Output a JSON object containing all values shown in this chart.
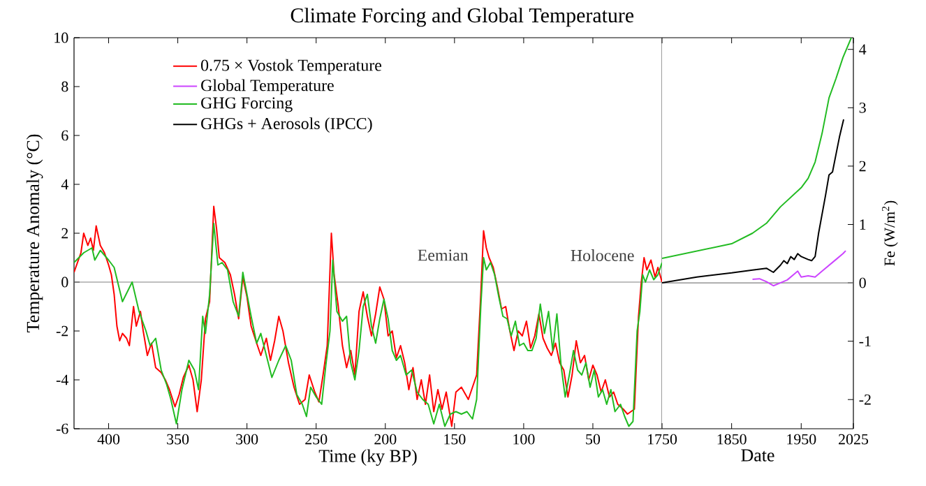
{
  "chart_data": [
    {
      "type": "line",
      "title": "Climate Forcing and Global Temperature",
      "xlabel": "Time (ky BP)",
      "ylabel": "Temperature Anomaly (°C)",
      "xlim": [
        425,
        0
      ],
      "xticks": [
        400,
        350,
        300,
        250,
        200,
        150,
        100,
        50
      ],
      "ylim": [
        -6,
        10
      ],
      "yticks": [
        -6,
        -4,
        -2,
        0,
        2,
        4,
        6,
        8,
        10
      ],
      "grid": false,
      "legend": "top left",
      "marker": "none",
      "line_style": "solid",
      "annotations": [
        {
          "text": "Eemian",
          "x": 130,
          "y": 1.1
        },
        {
          "text": "Holocene",
          "x": 10,
          "y": 1.1
        }
      ],
      "ref_lines": [
        {
          "axis": "y",
          "value": 0,
          "color": "#808080"
        }
      ],
      "series": [
        {
          "name": "0.75 × Vostok Temperature",
          "color": "#ff0000",
          "x": [
            425,
            420,
            418,
            415,
            413,
            411,
            409,
            406,
            403,
            400,
            398,
            396,
            394,
            392,
            390,
            387,
            385,
            382,
            380,
            377,
            375,
            372,
            369,
            366,
            362,
            359,
            356,
            352,
            349,
            346,
            342,
            339,
            336,
            333,
            330,
            327,
            324,
            322,
            320,
            316,
            312,
            309,
            306,
            303,
            300,
            297,
            293,
            290,
            286,
            283,
            280,
            277,
            274,
            270,
            266,
            262,
            258,
            255,
            251,
            248,
            245,
            242,
            239,
            237,
            234,
            231,
            228,
            225,
            222,
            219,
            216,
            213,
            210,
            207,
            204,
            201,
            198,
            195,
            192,
            189,
            186,
            183,
            180,
            177,
            174,
            171,
            168,
            165,
            162,
            159,
            156,
            152,
            149,
            145,
            140,
            137,
            134,
            131,
            129,
            127,
            125,
            122,
            119,
            116,
            113,
            110,
            107,
            104,
            101,
            98,
            95,
            92,
            89,
            86,
            83,
            80,
            77,
            74,
            71,
            68,
            65,
            62,
            59,
            56,
            53,
            50,
            47,
            44,
            41,
            38,
            35,
            32,
            28,
            25,
            20,
            17,
            15,
            13,
            11,
            8,
            5,
            3,
            0
          ],
          "values": [
            0.4,
            1.2,
            2.0,
            1.5,
            1.8,
            1.3,
            2.3,
            1.5,
            1.2,
            0.7,
            0.3,
            -0.5,
            -1.8,
            -2.4,
            -2.1,
            -2.3,
            -2.6,
            -1.0,
            -1.8,
            -1.2,
            -2.0,
            -3.0,
            -2.5,
            -3.5,
            -3.7,
            -4.0,
            -4.4,
            -5.1,
            -4.6,
            -3.9,
            -3.4,
            -4.0,
            -5.3,
            -4.0,
            -1.5,
            -0.8,
            3.1,
            2.2,
            1.0,
            0.8,
            0.3,
            -0.5,
            -1.5,
            0.2,
            -0.6,
            -1.8,
            -2.5,
            -3.0,
            -2.3,
            -3.2,
            -2.4,
            -1.4,
            -2.0,
            -3.3,
            -4.3,
            -5.0,
            -4.8,
            -3.8,
            -4.5,
            -4.9,
            -3.8,
            -2.6,
            2.0,
            0.3,
            -1.0,
            -2.6,
            -3.5,
            -2.8,
            -3.8,
            -1.2,
            -0.4,
            -1.4,
            -2.2,
            -1.3,
            -0.2,
            -0.7,
            -2.2,
            -2.0,
            -3.1,
            -2.6,
            -3.3,
            -4.4,
            -3.5,
            -4.8,
            -4.0,
            -5.0,
            -3.8,
            -5.3,
            -4.4,
            -5.2,
            -4.5,
            -5.9,
            -4.5,
            -4.3,
            -4.8,
            -4.3,
            -3.8,
            -0.5,
            2.1,
            1.4,
            1.0,
            0.6,
            -0.2,
            -1.1,
            -1.0,
            -2.0,
            -2.8,
            -2.0,
            -2.2,
            -1.6,
            -2.7,
            -2.2,
            -1.3,
            -2.3,
            -2.7,
            -3.0,
            -2.5,
            -3.3,
            -3.6,
            -4.7,
            -3.8,
            -2.4,
            -3.3,
            -3.0,
            -4.0,
            -3.4,
            -3.8,
            -4.5,
            -4.0,
            -4.7,
            -4.5,
            -5.0,
            -5.2,
            -5.4,
            -5.2,
            -1.4,
            0.0,
            1.0,
            0.5,
            0.9,
            0.2,
            0.6,
            0.0
          ]
        },
        {
          "name": "GHG Forcing",
          "color": "#22bb22",
          "x": [
            425,
            418,
            412,
            410,
            406,
            400,
            396,
            390,
            383,
            378,
            373,
            370,
            366,
            362,
            358,
            355,
            351,
            347,
            342,
            338,
            335,
            332,
            330,
            327,
            324,
            321,
            318,
            314,
            310,
            306,
            303,
            300,
            297,
            293,
            290,
            286,
            282,
            277,
            272,
            268,
            264,
            260,
            257,
            254,
            250,
            246,
            243,
            240,
            238,
            235,
            231,
            228,
            225,
            222,
            219,
            216,
            213,
            210,
            207,
            204,
            201,
            198,
            195,
            192,
            189,
            185,
            181,
            177,
            173,
            169,
            165,
            161,
            157,
            153,
            149,
            145,
            141,
            137,
            134,
            131,
            129,
            127,
            124,
            121,
            118,
            115,
            112,
            109,
            106,
            103,
            100,
            97,
            94,
            91,
            88,
            85,
            82,
            79,
            76,
            73,
            70,
            67,
            64,
            61,
            58,
            55,
            52,
            49,
            46,
            43,
            40,
            37,
            34,
            30,
            27,
            24,
            21,
            18,
            16,
            14,
            12,
            9,
            6,
            3,
            0
          ],
          "values": [
            0.8,
            1.2,
            1.4,
            0.9,
            1.3,
            0.9,
            0.6,
            -0.8,
            0.0,
            -1.2,
            -2.0,
            -2.6,
            -2.3,
            -3.6,
            -4.2,
            -4.8,
            -5.8,
            -4.4,
            -3.2,
            -3.6,
            -4.4,
            -1.4,
            -2.1,
            -0.5,
            2.4,
            0.7,
            0.8,
            0.5,
            -0.8,
            -1.4,
            0.4,
            -0.5,
            -1.4,
            -2.5,
            -2.1,
            -3.0,
            -3.9,
            -3.2,
            -2.6,
            -3.2,
            -4.6,
            -5.0,
            -5.5,
            -4.3,
            -4.7,
            -5.0,
            -3.4,
            -2.0,
            0.9,
            -1.2,
            -1.6,
            -1.4,
            -3.3,
            -4.0,
            -2.8,
            -1.0,
            -0.5,
            -1.8,
            -2.5,
            -1.5,
            -0.7,
            -1.5,
            -2.8,
            -3.2,
            -3.0,
            -3.8,
            -3.6,
            -4.5,
            -4.8,
            -5.0,
            -5.8,
            -5.0,
            -5.9,
            -5.4,
            -5.3,
            -5.4,
            -5.3,
            -5.6,
            -4.8,
            -1.0,
            1.0,
            0.5,
            0.8,
            0.3,
            -0.6,
            -1.4,
            -1.5,
            -2.2,
            -1.6,
            -2.6,
            -2.5,
            -2.8,
            -2.8,
            -2.3,
            -0.9,
            -2.1,
            -1.2,
            -2.8,
            -1.3,
            -3.4,
            -4.7,
            -3.8,
            -2.8,
            -3.6,
            -3.8,
            -3.3,
            -4.3,
            -3.6,
            -4.7,
            -4.4,
            -5.0,
            -4.4,
            -5.3,
            -5.0,
            -5.5,
            -5.9,
            -5.7,
            -2.0,
            -1.2,
            0.3,
            0.0,
            0.5,
            0.1,
            0.3,
            0.8
          ]
        }
      ]
    },
    {
      "type": "line",
      "xlabel": "Date",
      "y2label": "Fe (W/m$^{2}$)",
      "xlim": [
        1750,
        2025
      ],
      "xticks": [
        1750,
        1850,
        1950,
        2025
      ],
      "y2lim": [
        -2.5,
        4.2
      ],
      "y2ticks": [
        -2,
        -1,
        0,
        1,
        2,
        3,
        4
      ],
      "grid": false,
      "legend": "top left",
      "marker": "none",
      "line_style": "solid",
      "ref_lines": [
        {
          "axis": "y2",
          "value": 0,
          "color": "#808080"
        }
      ],
      "series": [
        {
          "name": "Global Temperature",
          "color": "#cc44ff",
          "axis": "y2",
          "x": [
            1880,
            1890,
            1900,
            1910,
            1920,
            1930,
            1940,
            1945,
            1950,
            1960,
            1970,
            1980,
            1990,
            2000,
            2010,
            2014
          ],
          "values": [
            0.06,
            0.07,
            0.02,
            -0.05,
            0.0,
            0.05,
            0.15,
            0.2,
            0.1,
            0.12,
            0.1,
            0.2,
            0.3,
            0.4,
            0.5,
            0.55
          ]
        },
        {
          "name": "GHGs + Aerosols (IPCC)",
          "color": "#000000",
          "axis": "y2",
          "x": [
            1750,
            1800,
            1850,
            1880,
            1900,
            1910,
            1920,
            1925,
            1930,
            1935,
            1940,
            1945,
            1950,
            1960,
            1965,
            1970,
            1975,
            1985,
            1990,
            1995,
            2000,
            2005,
            2011
          ],
          "values": [
            0,
            0.1,
            0.17,
            0.22,
            0.25,
            0.18,
            0.3,
            0.38,
            0.33,
            0.45,
            0.4,
            0.5,
            0.45,
            0.4,
            0.38,
            0.45,
            0.85,
            1.5,
            1.85,
            1.9,
            2.2,
            2.5,
            2.8
          ]
        },
        {
          "color": "#22bb22",
          "axis": "y2",
          "x": [
            1750,
            1850,
            1880,
            1900,
            1920,
            1950,
            1960,
            1970,
            1980,
            1990,
            2000,
            2010,
            2022
          ],
          "values": [
            0.42,
            0.67,
            0.85,
            1.02,
            1.3,
            1.63,
            1.79,
            2.07,
            2.56,
            3.17,
            3.5,
            3.86,
            4.2
          ]
        }
      ]
    }
  ]
}
